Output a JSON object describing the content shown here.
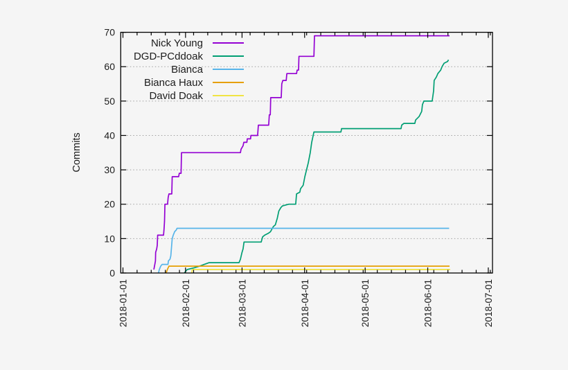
{
  "figure": {
    "background": "#f5f5f5",
    "border_color": "#000000",
    "grid_color": "#9f9f9f",
    "text_color": "#1c1c1c"
  },
  "chart_data": {
    "type": "line",
    "title": "",
    "xlabel": "",
    "ylabel": "Commits",
    "x_unit": "days since 2018-01-01",
    "ylim": [
      0,
      70
    ],
    "y_ticks": [
      0,
      10,
      20,
      30,
      40,
      50,
      60,
      70
    ],
    "x_ticks": [
      {
        "day": 0,
        "label": "2018-01-01"
      },
      {
        "day": 31,
        "label": "2018-02-01"
      },
      {
        "day": 59,
        "label": "2018-03-01"
      },
      {
        "day": 90,
        "label": "2018-04-01"
      },
      {
        "day": 120,
        "label": "2018-05-01"
      },
      {
        "day": 151,
        "label": "2018-06-01"
      },
      {
        "day": 181,
        "label": "2018-07-01"
      }
    ],
    "x_minor_tick_interval_days": 7,
    "grid": "horizontal dotted",
    "legend_position": "top-left inside, no box",
    "series": [
      {
        "name": "Nick Young",
        "color": "#9400D3",
        "points": [
          [
            15.3,
            1
          ],
          [
            15.8,
            2.5
          ],
          [
            16.1,
            3.5
          ],
          [
            16.2,
            6
          ],
          [
            16.7,
            7
          ],
          [
            17.0,
            8
          ],
          [
            17.2,
            11
          ],
          [
            20.1,
            11
          ],
          [
            20.4,
            13
          ],
          [
            20.6,
            15
          ],
          [
            20.8,
            20
          ],
          [
            22.1,
            20
          ],
          [
            22.4,
            22
          ],
          [
            22.8,
            23
          ],
          [
            24.2,
            23
          ],
          [
            24.4,
            28
          ],
          [
            27.6,
            28
          ],
          [
            27.9,
            29
          ],
          [
            28.8,
            29
          ],
          [
            29.0,
            35
          ],
          [
            58.2,
            35
          ],
          [
            58.5,
            36
          ],
          [
            59.5,
            37
          ],
          [
            59.9,
            38
          ],
          [
            61.4,
            38
          ],
          [
            61.6,
            39
          ],
          [
            63.2,
            39
          ],
          [
            63.4,
            40
          ],
          [
            66.7,
            40
          ],
          [
            67.1,
            43
          ],
          [
            72.2,
            43
          ],
          [
            72.5,
            46
          ],
          [
            73.0,
            46
          ],
          [
            73.2,
            51
          ],
          [
            78.4,
            51
          ],
          [
            78.7,
            55
          ],
          [
            79.2,
            56
          ],
          [
            80.9,
            56
          ],
          [
            81.2,
            58
          ],
          [
            86.0,
            58
          ],
          [
            86.3,
            59
          ],
          [
            87.0,
            59
          ],
          [
            87.2,
            63
          ],
          [
            94.6,
            63
          ],
          [
            94.9,
            69
          ],
          [
            161.8,
            69
          ]
        ]
      },
      {
        "name": "DGD-PCddoak",
        "color": "#009E73",
        "points": [
          [
            30.4,
            0
          ],
          [
            31.8,
            1
          ],
          [
            35.2,
            1.5
          ],
          [
            38.0,
            2
          ],
          [
            40.3,
            2.5
          ],
          [
            42.7,
            3
          ],
          [
            57.5,
            3
          ],
          [
            58.2,
            4
          ],
          [
            59.0,
            6
          ],
          [
            59.5,
            7
          ],
          [
            60.0,
            9
          ],
          [
            68.5,
            9
          ],
          [
            69.2,
            10.5
          ],
          [
            70.2,
            11
          ],
          [
            71.9,
            11.5
          ],
          [
            73.1,
            12
          ],
          [
            74.5,
            13.5
          ],
          [
            75.5,
            14
          ],
          [
            76.5,
            16
          ],
          [
            77.2,
            18
          ],
          [
            78.2,
            19
          ],
          [
            79.0,
            19.5
          ],
          [
            82.2,
            20
          ],
          [
            85.6,
            20
          ],
          [
            86.0,
            23
          ],
          [
            87.6,
            23.5
          ],
          [
            88.0,
            24.5
          ],
          [
            89.3,
            25.5
          ],
          [
            90.1,
            28
          ],
          [
            91.8,
            32
          ],
          [
            92.8,
            35
          ],
          [
            93.5,
            38
          ],
          [
            94.6,
            41
          ],
          [
            108.0,
            41
          ],
          [
            108.3,
            42
          ],
          [
            137.8,
            42
          ],
          [
            138.1,
            43
          ],
          [
            139.2,
            43.5
          ],
          [
            144.6,
            43.5
          ],
          [
            145.0,
            44.5
          ],
          [
            146.7,
            45.5
          ],
          [
            148.0,
            47
          ],
          [
            148.4,
            49
          ],
          [
            149.1,
            50
          ],
          [
            153.2,
            50
          ],
          [
            153.9,
            53
          ],
          [
            154.2,
            56
          ],
          [
            155.3,
            57
          ],
          [
            156.0,
            58
          ],
          [
            157.4,
            59
          ],
          [
            158.1,
            60
          ],
          [
            159.1,
            61
          ],
          [
            160.8,
            61.5
          ],
          [
            161.3,
            62
          ]
        ]
      },
      {
        "name": "Bianca",
        "color": "#56B4E9",
        "points": [
          [
            17.6,
            0
          ],
          [
            18.0,
            1
          ],
          [
            18.7,
            2
          ],
          [
            19.4,
            2.5
          ],
          [
            22.3,
            2.5
          ],
          [
            22.5,
            3.5
          ],
          [
            23.3,
            4
          ],
          [
            23.7,
            5
          ],
          [
            24.4,
            10
          ],
          [
            24.9,
            11
          ],
          [
            25.6,
            12
          ],
          [
            26.4,
            12.5
          ],
          [
            26.8,
            13
          ],
          [
            161.6,
            13
          ]
        ]
      },
      {
        "name": "Bianca Haux",
        "color": "#E69F00",
        "points": [
          [
            21.4,
            0
          ],
          [
            22.0,
            1
          ],
          [
            22.8,
            2
          ],
          [
            161.8,
            2
          ]
        ]
      },
      {
        "name": "David Doak",
        "color": "#F0E442",
        "points": [
          [
            34.1,
            0
          ],
          [
            34.3,
            1
          ],
          [
            162.1,
            1
          ]
        ]
      }
    ]
  }
}
